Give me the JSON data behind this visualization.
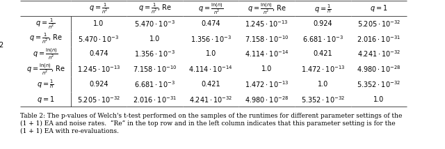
{
  "col_headers": [
    "$q = \\frac{1}{n^2}$",
    "$q = \\frac{1}{n^2}$, Re",
    "$q = \\frac{\\ln(n)}{n^2}$",
    "$q = \\frac{\\ln(n)}{n^2}$, Re",
    "$q = \\frac{1}{n}$",
    "$q = 1$"
  ],
  "row_headers": [
    "$q = \\frac{1}{n^2}$",
    "$q = \\frac{1}{n^2}$, Re",
    "$q = \\frac{\\ln(n)}{n^2}$",
    "$q = \\frac{\\ln(n)}{n^2}$, Re",
    "$q = \\frac{1}{n}$",
    "$q = 1$"
  ],
  "table_data": [
    [
      "1.0",
      "$5.470 \\cdot 10^{-3}$",
      "0.474",
      "$1.245 \\cdot 10^{-13}$",
      "0.924",
      "$5.205 \\cdot 10^{-32}$"
    ],
    [
      "$5.470 \\cdot 10^{-3}$",
      "1.0",
      "$1.356 \\cdot 10^{-3}$",
      "$7.158 \\cdot 10^{-10}$",
      "$6.681 \\cdot 10^{-3}$",
      "$2.016 \\cdot 10^{-31}$"
    ],
    [
      "0.474",
      "$1.356 \\cdot 10^{-3}$",
      "1.0",
      "$4.114 \\cdot 10^{-14}$",
      "0.421",
      "$4.241 \\cdot 10^{-32}$"
    ],
    [
      "$1.245 \\cdot 10^{-13}$",
      "$7.158 \\cdot 10^{-10}$",
      "$4.114 \\cdot 10^{-14}$",
      "1.0",
      "$1.472 \\cdot 10^{-13}$",
      "$4.980 \\cdot 10^{-28}$"
    ],
    [
      "0.924",
      "$6.681 \\cdot 10^{-3}$",
      "0.421",
      "$1.472 \\cdot 10^{-13}$",
      "1.0",
      "$5.352 \\cdot 10^{-32}$"
    ],
    [
      "$5.205 \\cdot 10^{-32}$",
      "$2.016 \\cdot 10^{-31}$",
      "$4.241 \\cdot 10^{-32}$",
      "$4.980 \\cdot 10^{-28}$",
      "$5.352 \\cdot 10^{-32}$",
      "1.0"
    ]
  ],
  "caption": "Table 2: The p-values of Welch's t-test performed on the samples of the runtimes for different parameter settings of the\n(1 + 1) EA and noise rates.  “Re” in the top row and in the left column indicates that this parameter setting is for the\n(1 + 1) EA with re-evaluations.",
  "background_color": "#ffffff",
  "font_size": 7,
  "caption_font_size": 6.5
}
